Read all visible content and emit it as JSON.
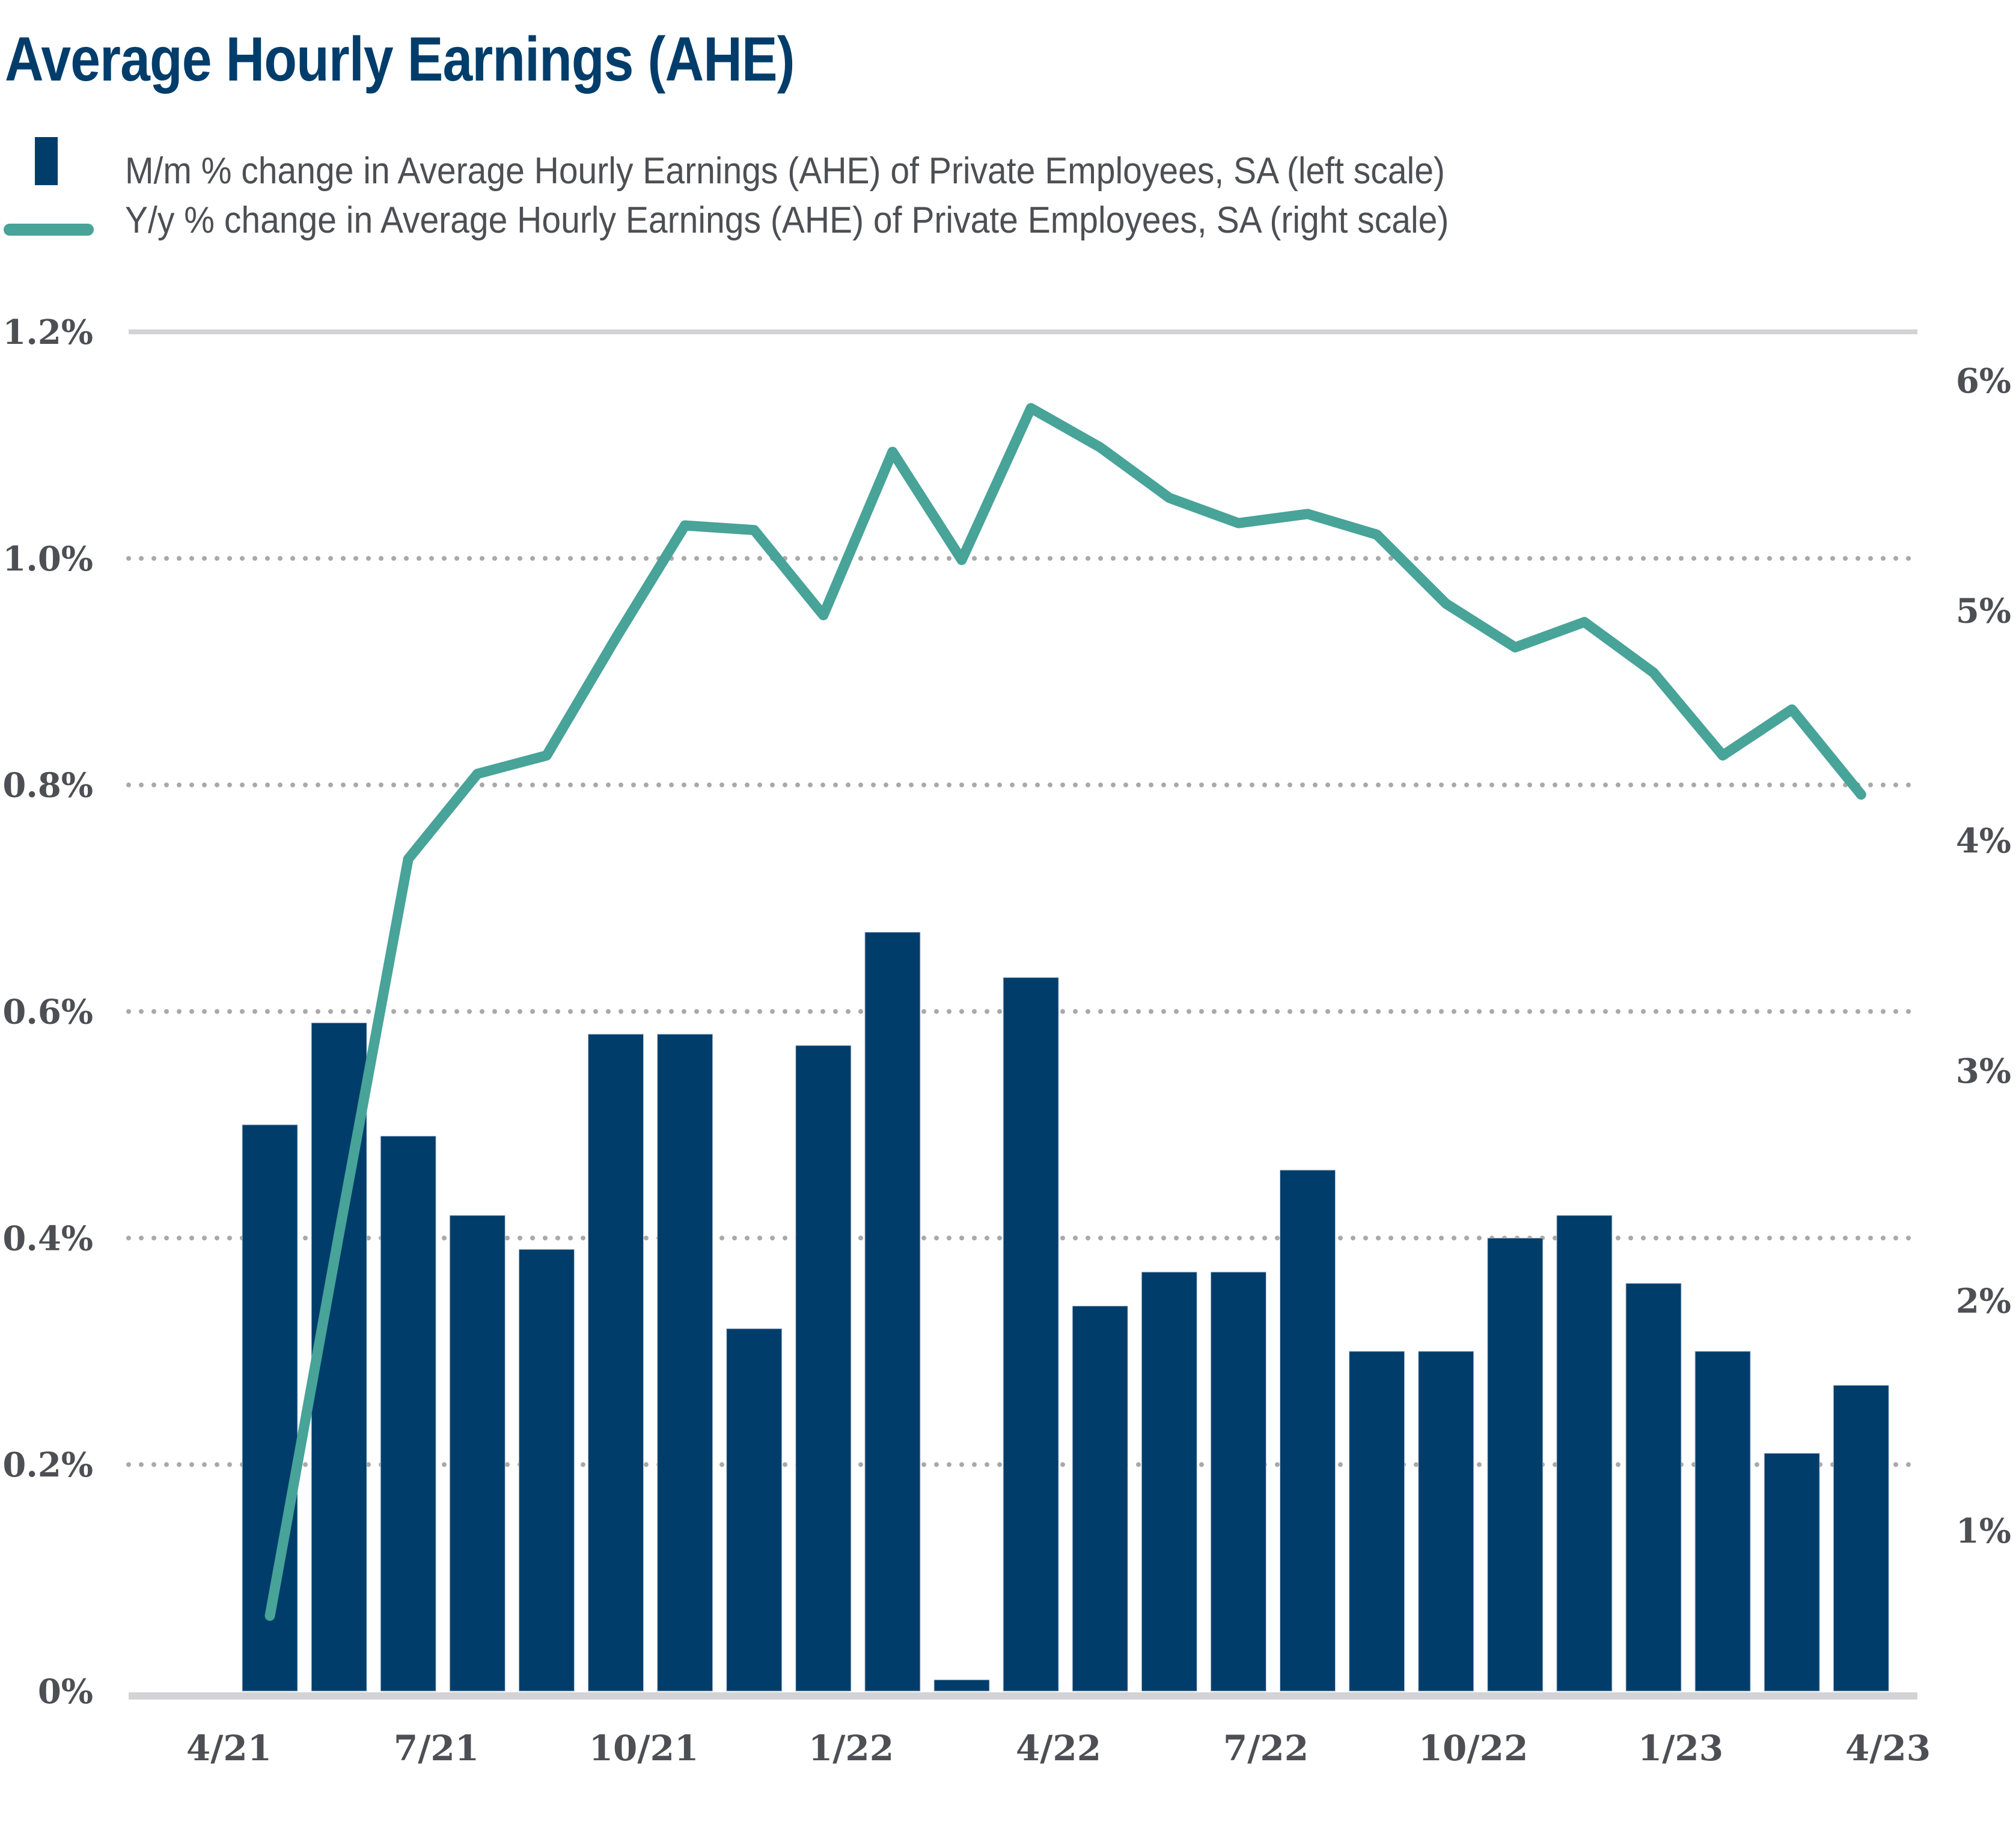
{
  "chart_data": {
    "type": "bar+line",
    "title": "Average Hourly Earnings (AHE)",
    "legend": [
      {
        "name": "M/m % change in Average Hourly Earnings (AHE) of Private Employees, SA (left scale)",
        "kind": "bar",
        "color": "#003d6b"
      },
      {
        "name": "Y/y % change in Average Hourly Earnings (AHE) of Private Employees, SA (right scale)",
        "kind": "line",
        "color": "#48a398"
      }
    ],
    "legend_position": "top-left",
    "categories": [
      "4/21",
      "5/21",
      "6/21",
      "7/21",
      "8/21",
      "9/21",
      "10/21",
      "11/21",
      "12/21",
      "1/22",
      "2/22",
      "3/22",
      "4/22",
      "5/22",
      "6/22",
      "7/22",
      "8/22",
      "9/22",
      "10/22",
      "11/22",
      "12/22",
      "1/23",
      "2/23",
      "3/23"
    ],
    "x_tick_labels": [
      "4/21",
      "7/21",
      "10/21",
      "1/22",
      "4/22",
      "7/22",
      "10/22",
      "1/23",
      "4/23"
    ],
    "series": [
      {
        "name": "M/m % change (left scale)",
        "type": "bar",
        "axis": "left",
        "values": [
          0.5,
          0.59,
          0.49,
          0.42,
          0.39,
          0.58,
          0.58,
          0.32,
          0.57,
          0.67,
          0.01,
          0.63,
          0.34,
          0.37,
          0.37,
          0.46,
          0.3,
          0.3,
          0.4,
          0.42,
          0.36,
          0.3,
          0.21,
          0.27
        ]
      },
      {
        "name": "Y/y % change (right scale)",
        "type": "line",
        "axis": "right",
        "values": [
          0.63,
          2.29,
          3.92,
          4.29,
          4.37,
          4.88,
          5.37,
          5.35,
          4.98,
          5.69,
          5.22,
          5.88,
          5.71,
          5.49,
          5.38,
          5.42,
          5.33,
          5.03,
          4.84,
          4.95,
          4.73,
          4.37,
          4.57,
          4.2
        ]
      }
    ],
    "left_axis": {
      "ylim": [
        0,
        1.2
      ],
      "ticks": [
        0,
        0.2,
        0.4,
        0.6,
        0.8,
        1.0,
        1.2
      ],
      "tick_labels": [
        "0%",
        "0.2%",
        "0.4%",
        "0.6%",
        "0.8%",
        "1.0%",
        "1.2%"
      ]
    },
    "right_axis": {
      "ylim": [
        0.3,
        6.2
      ],
      "ticks": [
        1,
        2,
        3,
        4,
        5,
        6
      ],
      "tick_labels": [
        "1%",
        "2%",
        "3%",
        "4%",
        "5%",
        "6%"
      ]
    },
    "grid": "horizontal dotted",
    "xlabel": "",
    "ylabel": ""
  }
}
